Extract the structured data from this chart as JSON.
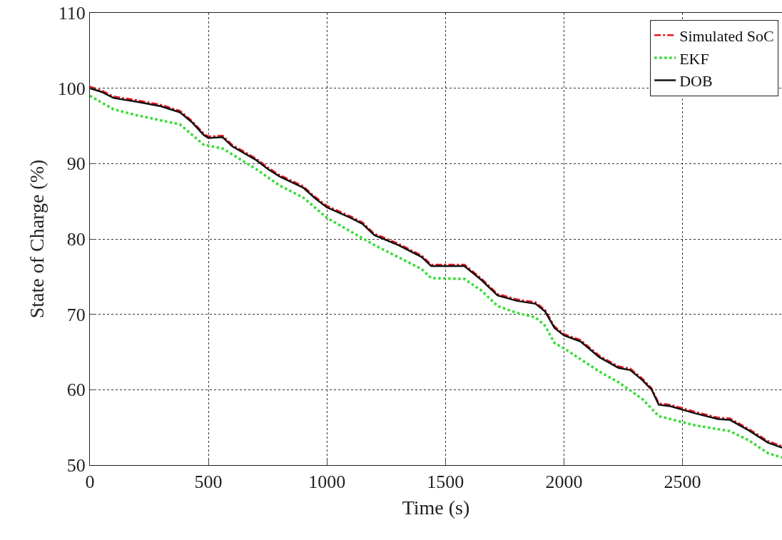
{
  "chart_data": {
    "type": "line",
    "xlabel": "Time (s)",
    "ylabel": "State of Charge (%)",
    "xlim": [
      0,
      2920
    ],
    "xticks": [
      0,
      500,
      1000,
      1500,
      2000,
      2500
    ],
    "ylim": [
      50,
      110
    ],
    "yticks": [
      50,
      60,
      70,
      80,
      90,
      100,
      110
    ],
    "grid": true,
    "legend": "top right",
    "series": [
      {
        "name": "Simulated SoC",
        "color": "#e8141e",
        "line_style": "dashdot",
        "x": [
          0,
          50,
          100,
          200,
          300,
          380,
          430,
          480,
          500,
          560,
          600,
          700,
          750,
          800,
          900,
          950,
          1000,
          1100,
          1150,
          1200,
          1300,
          1400,
          1440,
          1580,
          1650,
          1720,
          1800,
          1880,
          1920,
          1960,
          2000,
          2070,
          2150,
          2230,
          2280,
          2330,
          2370,
          2400,
          2450,
          2550,
          2650,
          2700,
          2780,
          2860,
          2920
        ],
        "values": [
          100.2,
          99.7,
          98.9,
          98.4,
          97.8,
          97,
          95.7,
          94,
          93.6,
          93.7,
          92.5,
          90.7,
          89.5,
          88.5,
          87,
          85.6,
          84.4,
          83,
          82.2,
          80.7,
          79.4,
          77.8,
          76.6,
          76.6,
          74.8,
          72.7,
          72,
          71.6,
          70.6,
          68.4,
          67.4,
          66.6,
          64.5,
          63.1,
          62.8,
          61.5,
          60.2,
          58.2,
          58,
          57.1,
          56.3,
          56.2,
          54.8,
          53.2,
          52.5
        ]
      },
      {
        "name": "EKF",
        "color": "#33dd33",
        "line_style": "dotted",
        "x": [
          0,
          100,
          200,
          380,
          480,
          560,
          700,
          800,
          900,
          1000,
          1200,
          1400,
          1440,
          1580,
          1650,
          1720,
          1800,
          1880,
          1920,
          1960,
          2000,
          2150,
          2230,
          2330,
          2400,
          2550,
          2700,
          2780,
          2860,
          2920
        ],
        "values": [
          99,
          97.2,
          96.4,
          95.2,
          92.5,
          92,
          89.3,
          87.1,
          85.5,
          82.8,
          79.2,
          76,
          74.8,
          74.7,
          73.2,
          71.1,
          70.2,
          69.6,
          68.5,
          66.2,
          65.5,
          62.4,
          61,
          58.8,
          56.5,
          55.3,
          54.5,
          53.3,
          51.6,
          51
        ]
      },
      {
        "name": "DOB",
        "color": "#111111",
        "line_style": "solid",
        "x": [
          0,
          50,
          100,
          200,
          300,
          380,
          430,
          480,
          500,
          560,
          600,
          700,
          750,
          800,
          900,
          950,
          1000,
          1100,
          1150,
          1200,
          1300,
          1400,
          1440,
          1580,
          1650,
          1720,
          1800,
          1880,
          1920,
          1960,
          2000,
          2070,
          2150,
          2230,
          2280,
          2330,
          2370,
          2400,
          2450,
          2550,
          2650,
          2700,
          2780,
          2860,
          2920
        ],
        "values": [
          100,
          99.5,
          98.7,
          98.2,
          97.6,
          96.8,
          95.5,
          93.8,
          93.4,
          93.5,
          92.3,
          90.5,
          89.3,
          88.3,
          86.8,
          85.4,
          84.2,
          82.8,
          82,
          80.5,
          79.2,
          77.6,
          76.4,
          76.4,
          74.6,
          72.5,
          71.8,
          71.4,
          70.4,
          68.2,
          67.2,
          66.4,
          64.3,
          62.9,
          62.6,
          61.3,
          60,
          58,
          57.8,
          56.9,
          56.1,
          56,
          54.6,
          53,
          52.3
        ]
      }
    ]
  }
}
